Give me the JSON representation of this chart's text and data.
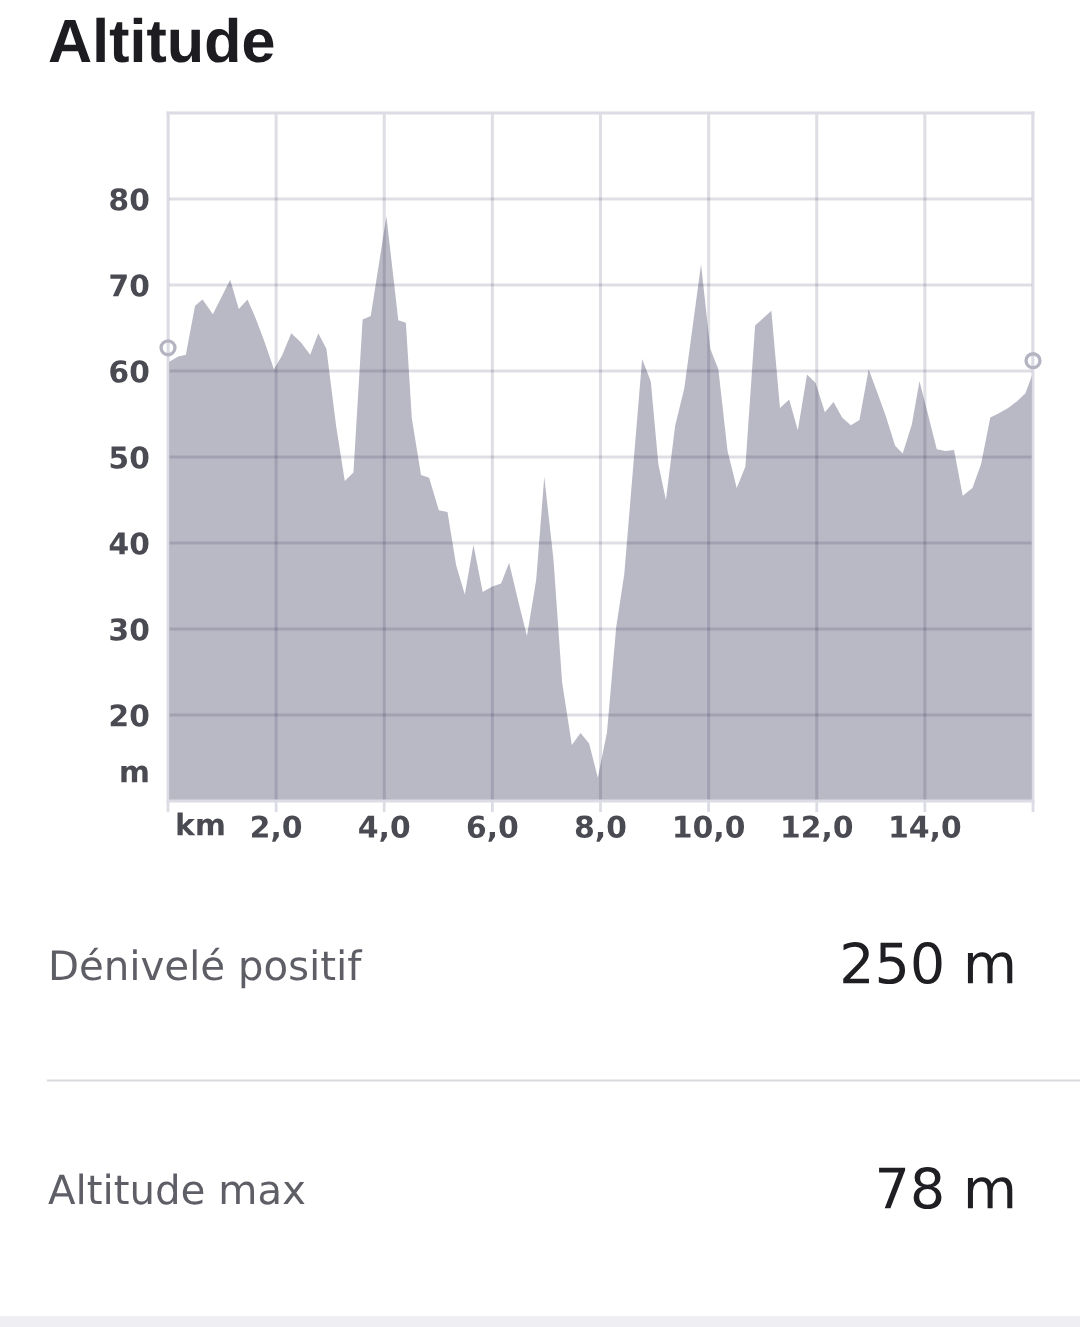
{
  "chart_data": {
    "type": "area",
    "title": "Altitude",
    "xlabel": "km",
    "ylabel": "m",
    "xlim": [
      0,
      16
    ],
    "xticks": [
      {
        "value": 0,
        "label": null
      },
      {
        "value": 2,
        "label": "2,0"
      },
      {
        "value": 4,
        "label": "4,0"
      },
      {
        "value": 6,
        "label": "6,0"
      },
      {
        "value": 8,
        "label": "8,0"
      },
      {
        "value": 10,
        "label": "10,0"
      },
      {
        "value": 12,
        "label": "12,0"
      },
      {
        "value": 14,
        "label": "14,0"
      },
      {
        "value": 16,
        "label": null
      }
    ],
    "ylim": [
      10,
      90
    ],
    "yticks": [
      20,
      30,
      40,
      50,
      60,
      70,
      80
    ],
    "grid": true,
    "series": [
      {
        "color": "#b9b9c6",
        "x": [
          0.0,
          0.19,
          0.33,
          0.5,
          0.64,
          0.83,
          1.15,
          1.31,
          1.47,
          1.63,
          1.78,
          1.96,
          2.11,
          2.28,
          2.46,
          2.63,
          2.78,
          2.93,
          3.11,
          3.27,
          3.43,
          3.6,
          3.75,
          4.04,
          4.26,
          4.4,
          4.51,
          4.68,
          4.83,
          5.01,
          5.17,
          5.33,
          5.49,
          5.65,
          5.82,
          5.99,
          6.16,
          6.31,
          6.48,
          6.64,
          6.81,
          6.96,
          7.13,
          7.29,
          7.47,
          7.63,
          7.79,
          7.95,
          8.12,
          8.29,
          8.44,
          8.77,
          8.93,
          9.07,
          9.21,
          9.38,
          9.55,
          9.86,
          10.03,
          10.18,
          10.35,
          10.52,
          10.68,
          10.86,
          11.16,
          11.32,
          11.49,
          11.65,
          11.82,
          11.98,
          12.15,
          12.31,
          12.47,
          12.63,
          12.79,
          12.96,
          13.12,
          13.28,
          13.45,
          13.59,
          13.76,
          13.9,
          14.06,
          14.22,
          14.38,
          14.54,
          14.7,
          14.88,
          15.04,
          15.21,
          15.37,
          15.54,
          15.71,
          15.86,
          16.0
        ],
        "values": [
          61.0,
          61.7,
          61.9,
          67.6,
          68.3,
          66.6,
          70.6,
          67.2,
          68.3,
          66.0,
          63.5,
          60.2,
          61.8,
          64.4,
          63.3,
          61.9,
          64.4,
          62.6,
          53.6,
          47.2,
          48.2,
          66.0,
          66.4,
          78.0,
          65.9,
          65.6,
          54.5,
          47.9,
          47.6,
          43.8,
          43.6,
          37.4,
          34.0,
          39.8,
          34.3,
          34.9,
          35.3,
          37.7,
          33.2,
          29.2,
          35.7,
          47.7,
          38.1,
          23.8,
          16.5,
          17.9,
          16.7,
          12.7,
          18.0,
          30.2,
          36.4,
          61.4,
          58.8,
          49.2,
          45.0,
          53.6,
          58.0,
          72.4,
          62.6,
          60.2,
          50.7,
          46.4,
          48.9,
          65.3,
          67.0,
          55.7,
          56.7,
          53.1,
          59.6,
          58.6,
          55.2,
          56.4,
          54.6,
          53.7,
          54.3,
          60.2,
          57.5,
          54.7,
          51.3,
          50.4,
          53.8,
          58.8,
          54.9,
          50.9,
          50.7,
          50.8,
          45.5,
          46.4,
          49.2,
          54.6,
          55.1,
          55.7,
          56.5,
          57.4,
          59.8
        ]
      },
      {
        "type": "scatter",
        "marker": "circle",
        "color": "#b4b4c2",
        "x": [
          0,
          16
        ],
        "values": [
          62.7,
          61.2
        ]
      }
    ],
    "annotations": [
      "Dénivelé positif",
      "250 m",
      "Altitude max",
      "78 m"
    ]
  }
}
